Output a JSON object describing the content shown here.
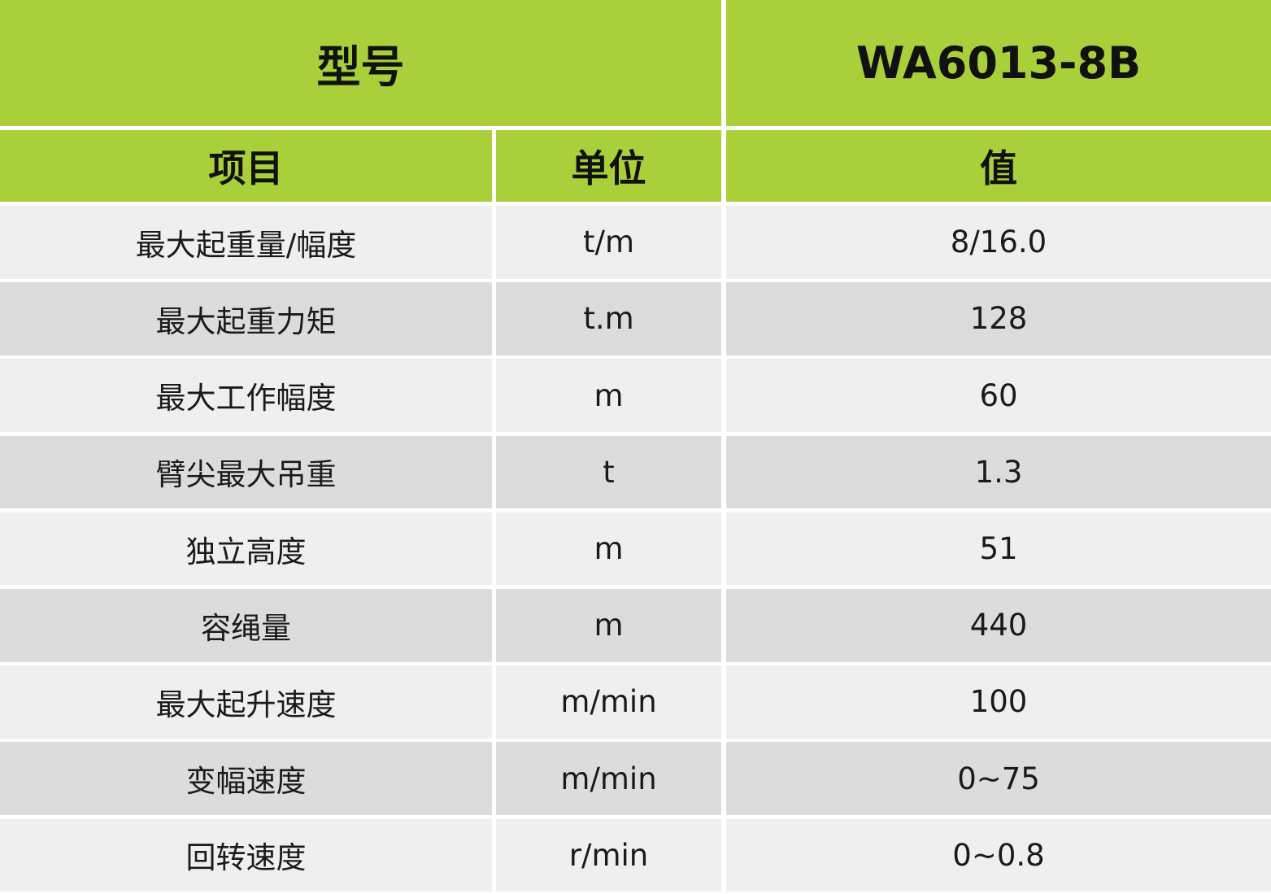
{
  "header": {
    "model_label": "型号",
    "model_value": "WA6013-8B"
  },
  "table": {
    "columns": [
      "项目",
      "单位",
      "值"
    ],
    "rows": [
      [
        "最大起重量/幅度",
        "t/m",
        "8/16.0"
      ],
      [
        "最大起重力矩",
        "t.m",
        "128"
      ],
      [
        "最大工作幅度",
        "m",
        "60"
      ],
      [
        "臂尖最大吊重",
        "t",
        "1.3"
      ],
      [
        "独立高度",
        "m",
        "51"
      ],
      [
        "容绳量",
        "m",
        "440"
      ],
      [
        "最大起升速度",
        "m/min",
        "100"
      ],
      [
        "变幅速度",
        "m/min",
        "0~75"
      ],
      [
        "回转速度",
        "r/min",
        "0~0.8"
      ]
    ]
  }
}
